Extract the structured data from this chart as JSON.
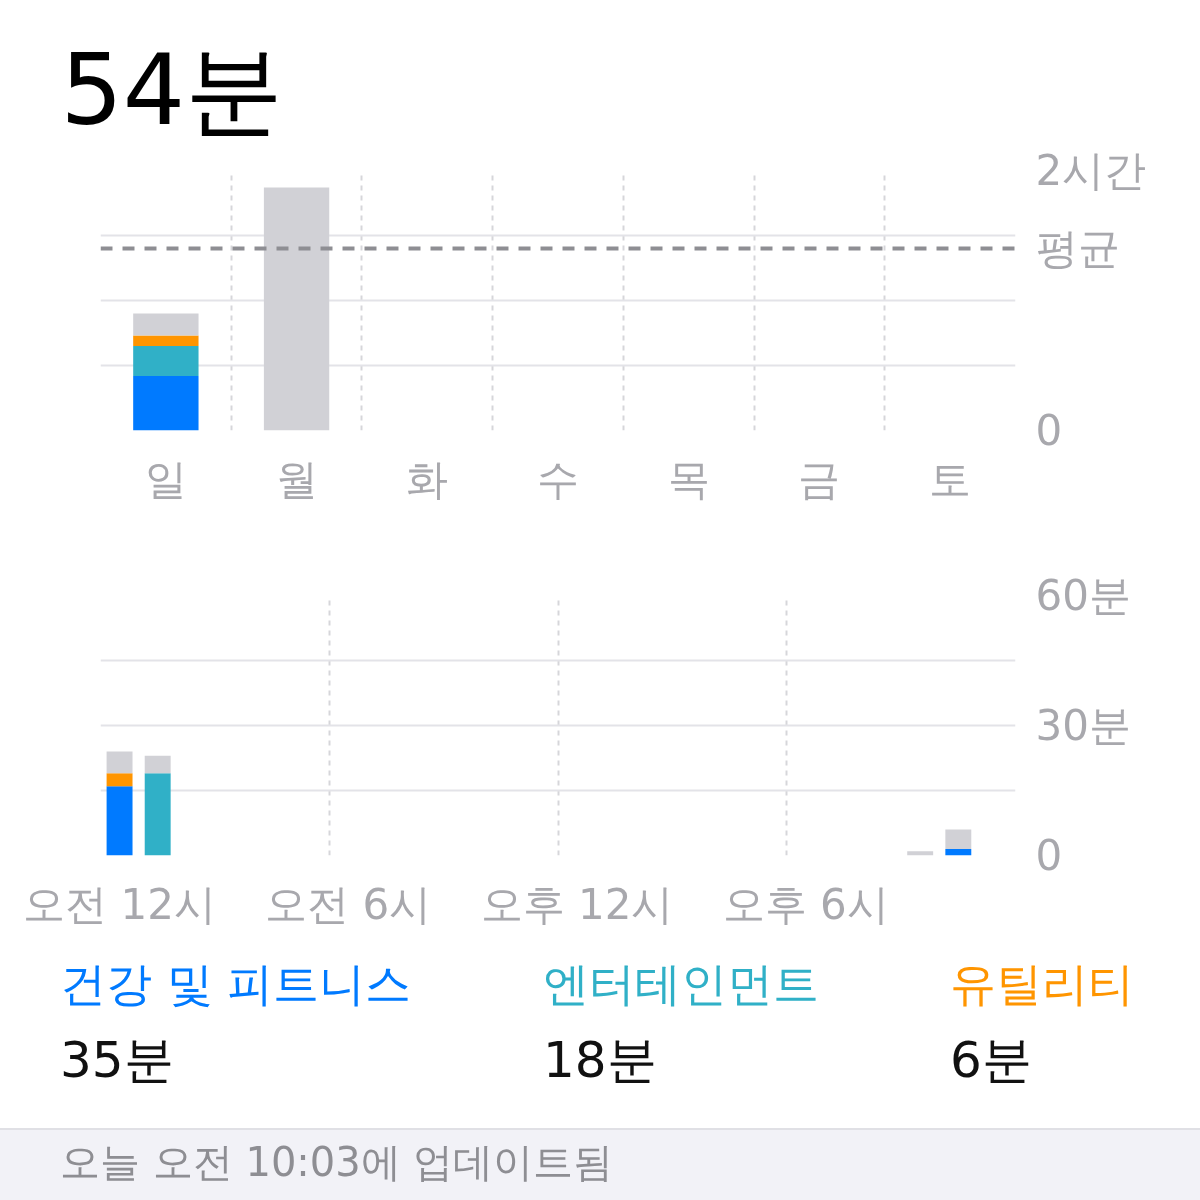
{
  "chart_data": [
    {
      "type": "bar",
      "title": "54분",
      "categories": [
        "일",
        "월",
        "화",
        "수",
        "목",
        "금",
        "토"
      ],
      "stacked": true,
      "series": [
        {
          "color": "#007aff",
          "values": [
            0.42,
            null,
            null,
            null,
            null,
            null,
            null
          ]
        },
        {
          "color": "#30b0c7",
          "values": [
            0.23,
            null,
            null,
            null,
            null,
            null,
            null
          ]
        },
        {
          "color": "#ff9500",
          "values": [
            0.08,
            null,
            null,
            null,
            null,
            null,
            null
          ]
        },
        {
          "color": "#d1d1d6",
          "values": [
            0.17,
            1.87,
            null,
            null,
            null,
            null,
            null
          ]
        }
      ],
      "ylim": [
        0,
        2
      ],
      "yticks": [
        0,
        {
          "value": 0.5,
          "label": null
        },
        {
          "value": 1,
          "label": null
        },
        {
          "value": 1.5,
          "label": null
        },
        {
          "value": 2,
          "label": "2시간"
        }
      ],
      "grid": true,
      "ref_lines": [
        {
          "axis": "y",
          "value": 1.4,
          "label": "평균",
          "color": "#8e8e93",
          "line_style": "dashed"
        }
      ]
    },
    {
      "type": "bar",
      "categories": [
        "오전 12시",
        null,
        null,
        null,
        null,
        null,
        "오전 6시",
        null,
        null,
        null,
        null,
        null,
        "오후 12시",
        null,
        null,
        null,
        null,
        null,
        "오후 6시",
        null,
        null,
        null,
        null,
        null
      ],
      "stacked": true,
      "series": [
        {
          "name": "건강 및 피트니스",
          "color": "#007aff",
          "values": [
            16,
            null,
            null,
            null,
            null,
            null,
            null,
            null,
            null,
            null,
            null,
            null,
            null,
            null,
            null,
            null,
            null,
            null,
            null,
            null,
            null,
            null,
            1.5,
            null
          ]
        },
        {
          "name": "엔터테인먼트",
          "color": "#30b0c7",
          "values": [
            null,
            19,
            null,
            null,
            null,
            null,
            null,
            null,
            null,
            null,
            null,
            null,
            null,
            null,
            null,
            null,
            null,
            null,
            null,
            null,
            null,
            null,
            null,
            null
          ]
        },
        {
          "name": "유틸리티",
          "color": "#ff9500",
          "values": [
            3,
            null,
            null,
            null,
            null,
            null,
            null,
            null,
            null,
            null,
            null,
            null,
            null,
            null,
            null,
            null,
            null,
            null,
            null,
            null,
            null,
            null,
            null,
            null
          ]
        },
        {
          "color": "#d1d1d6",
          "values": [
            5,
            4,
            null,
            null,
            null,
            null,
            null,
            null,
            null,
            null,
            null,
            null,
            null,
            null,
            null,
            null,
            null,
            null,
            null,
            null,
            null,
            1,
            4.5,
            null
          ]
        }
      ],
      "ylim": [
        0,
        60
      ],
      "yticks": [
        0,
        {
          "value": 15,
          "label": null
        },
        {
          "value": 30,
          "label": "30분"
        },
        {
          "value": 45,
          "label": null
        },
        {
          "value": 60,
          "label": "60분"
        }
      ],
      "grid": true,
      "legend": "bottom",
      "annotations": [
        "35분",
        "18분",
        "6분",
        "오늘 오전 10:03에 업데이트됨"
      ]
    }
  ]
}
